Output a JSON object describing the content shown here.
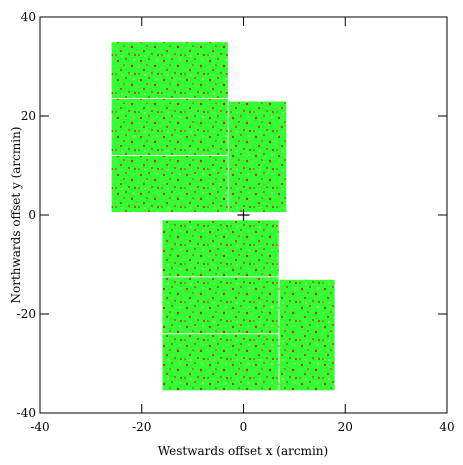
{
  "chart_data": {
    "type": "fields",
    "xlabel": "Westwards offset x (arcmin)",
    "ylabel": "Northwards offset y (arcmin)",
    "xlim": [
      -40,
      40
    ],
    "ylim": [
      -40,
      40
    ],
    "xticks": [
      -40,
      -20,
      0,
      20,
      40
    ],
    "yticks": [
      -40,
      -20,
      0,
      20,
      40
    ],
    "color": "#33ff33",
    "point_color": "#cc2200",
    "fields": [
      {
        "x": [
          -26,
          -3
        ],
        "y": [
          23.5,
          35
        ]
      },
      {
        "x": [
          -26,
          -3
        ],
        "y": [
          12,
          23.5
        ]
      },
      {
        "x": [
          -26,
          -3
        ],
        "y": [
          0.5,
          12
        ]
      },
      {
        "x": [
          -3,
          8.5
        ],
        "y": [
          0.5,
          23
        ]
      },
      {
        "x": [
          -16,
          7
        ],
        "y": [
          -12.5,
          -1
        ]
      },
      {
        "x": [
          -16,
          7
        ],
        "y": [
          -24,
          -12.5
        ]
      },
      {
        "x": [
          -16,
          7
        ],
        "y": [
          -35.5,
          -24
        ]
      },
      {
        "x": [
          7,
          18
        ],
        "y": [
          -35.5,
          -13
        ]
      }
    ],
    "marker": {
      "x": 0,
      "y": 0
    }
  }
}
